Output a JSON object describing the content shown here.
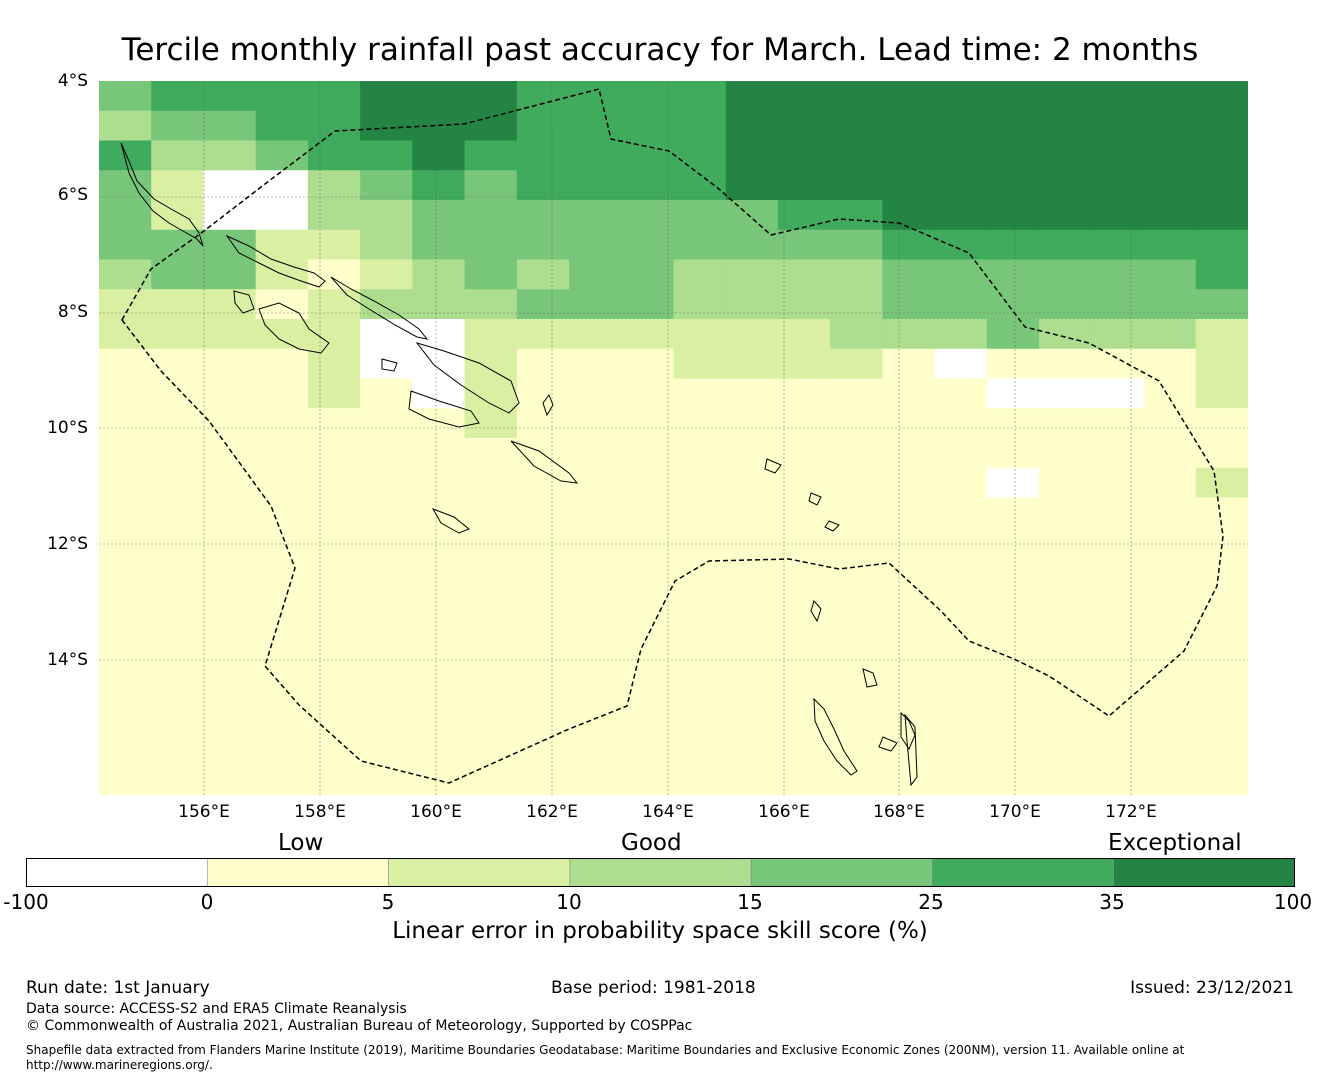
{
  "title": "Tercile monthly rainfall past accuracy for March. Lead time: 2 months",
  "map": {
    "lat_ticks": [
      "4°S",
      "6°S",
      "8°S",
      "10°S",
      "12°S",
      "14°S"
    ],
    "lon_ticks": [
      "156°E",
      "158°E",
      "160°E",
      "162°E",
      "164°E",
      "166°E",
      "168°E",
      "170°E",
      "172°E"
    ],
    "extent": {
      "lon_min": 154.2,
      "lon_max": 174.0,
      "lat_top": -4.0,
      "lat_bottom": -16.3
    },
    "colors": [
      "#ffffff",
      "#ffffcc",
      "#d9f0a3",
      "#addd8e",
      "#78c679",
      "#41ab5d",
      "#238443"
    ],
    "grid": [
      "4555566655556666666666",
      "3445566655556666666666",
      "5334556555556666666666",
      "4200345455556666666666",
      "4200334444444556666666",
      "4442234444444445555555",
      "3442123434433334444445",
      "2221233344433334444444",
      "2222200222222233343332",
      "1111200211122221011112",
      "1111210211111111100012",
      "1111111211111111111111",
      "1111111111111111111111",
      "1111111111111111101112",
      "1111111111111111111111",
      "1111111111111111111111",
      "1111111111111111111111",
      "1111111111111111111111",
      "1111111111111111111111",
      "1111111111111111111111",
      "1111111111111111111111",
      "1111111111111111111111",
      "1111111111111111111111",
      "1111111111111111111111"
    ]
  },
  "colorbar": {
    "ticks": [
      "-100",
      "0",
      "5",
      "10",
      "15",
      "25",
      "35",
      "100"
    ],
    "colors": [
      "#ffffff",
      "#ffffcc",
      "#d9f0a3",
      "#addd8e",
      "#78c679",
      "#41ab5d",
      "#238443"
    ],
    "categories": {
      "low": "Low",
      "good": "Good",
      "exceptional": "Exceptional"
    },
    "label": "Linear error in probability space skill score (%)"
  },
  "footer": {
    "run_date": "Run date: 1st January",
    "base_period": "Base period: 1981-2018",
    "issued": "Issued: 23/12/2021",
    "data_source": "Data source: ACCESS-S2 and ERA5 Climate Reanalysis",
    "copyright": "© Commonwealth of Australia 2021, Australian Bureau of Meteorology, Supported by COSPPac",
    "shapefile_line1": "Shapefile data extracted from Flanders Marine Institute (2019), Maritime Boundaries Geodatabase: Maritime Boundaries and Exclusive Economic Zones (200NM), version 11. Available online at",
    "shapefile_line2": "http://www.marineregions.org/."
  }
}
